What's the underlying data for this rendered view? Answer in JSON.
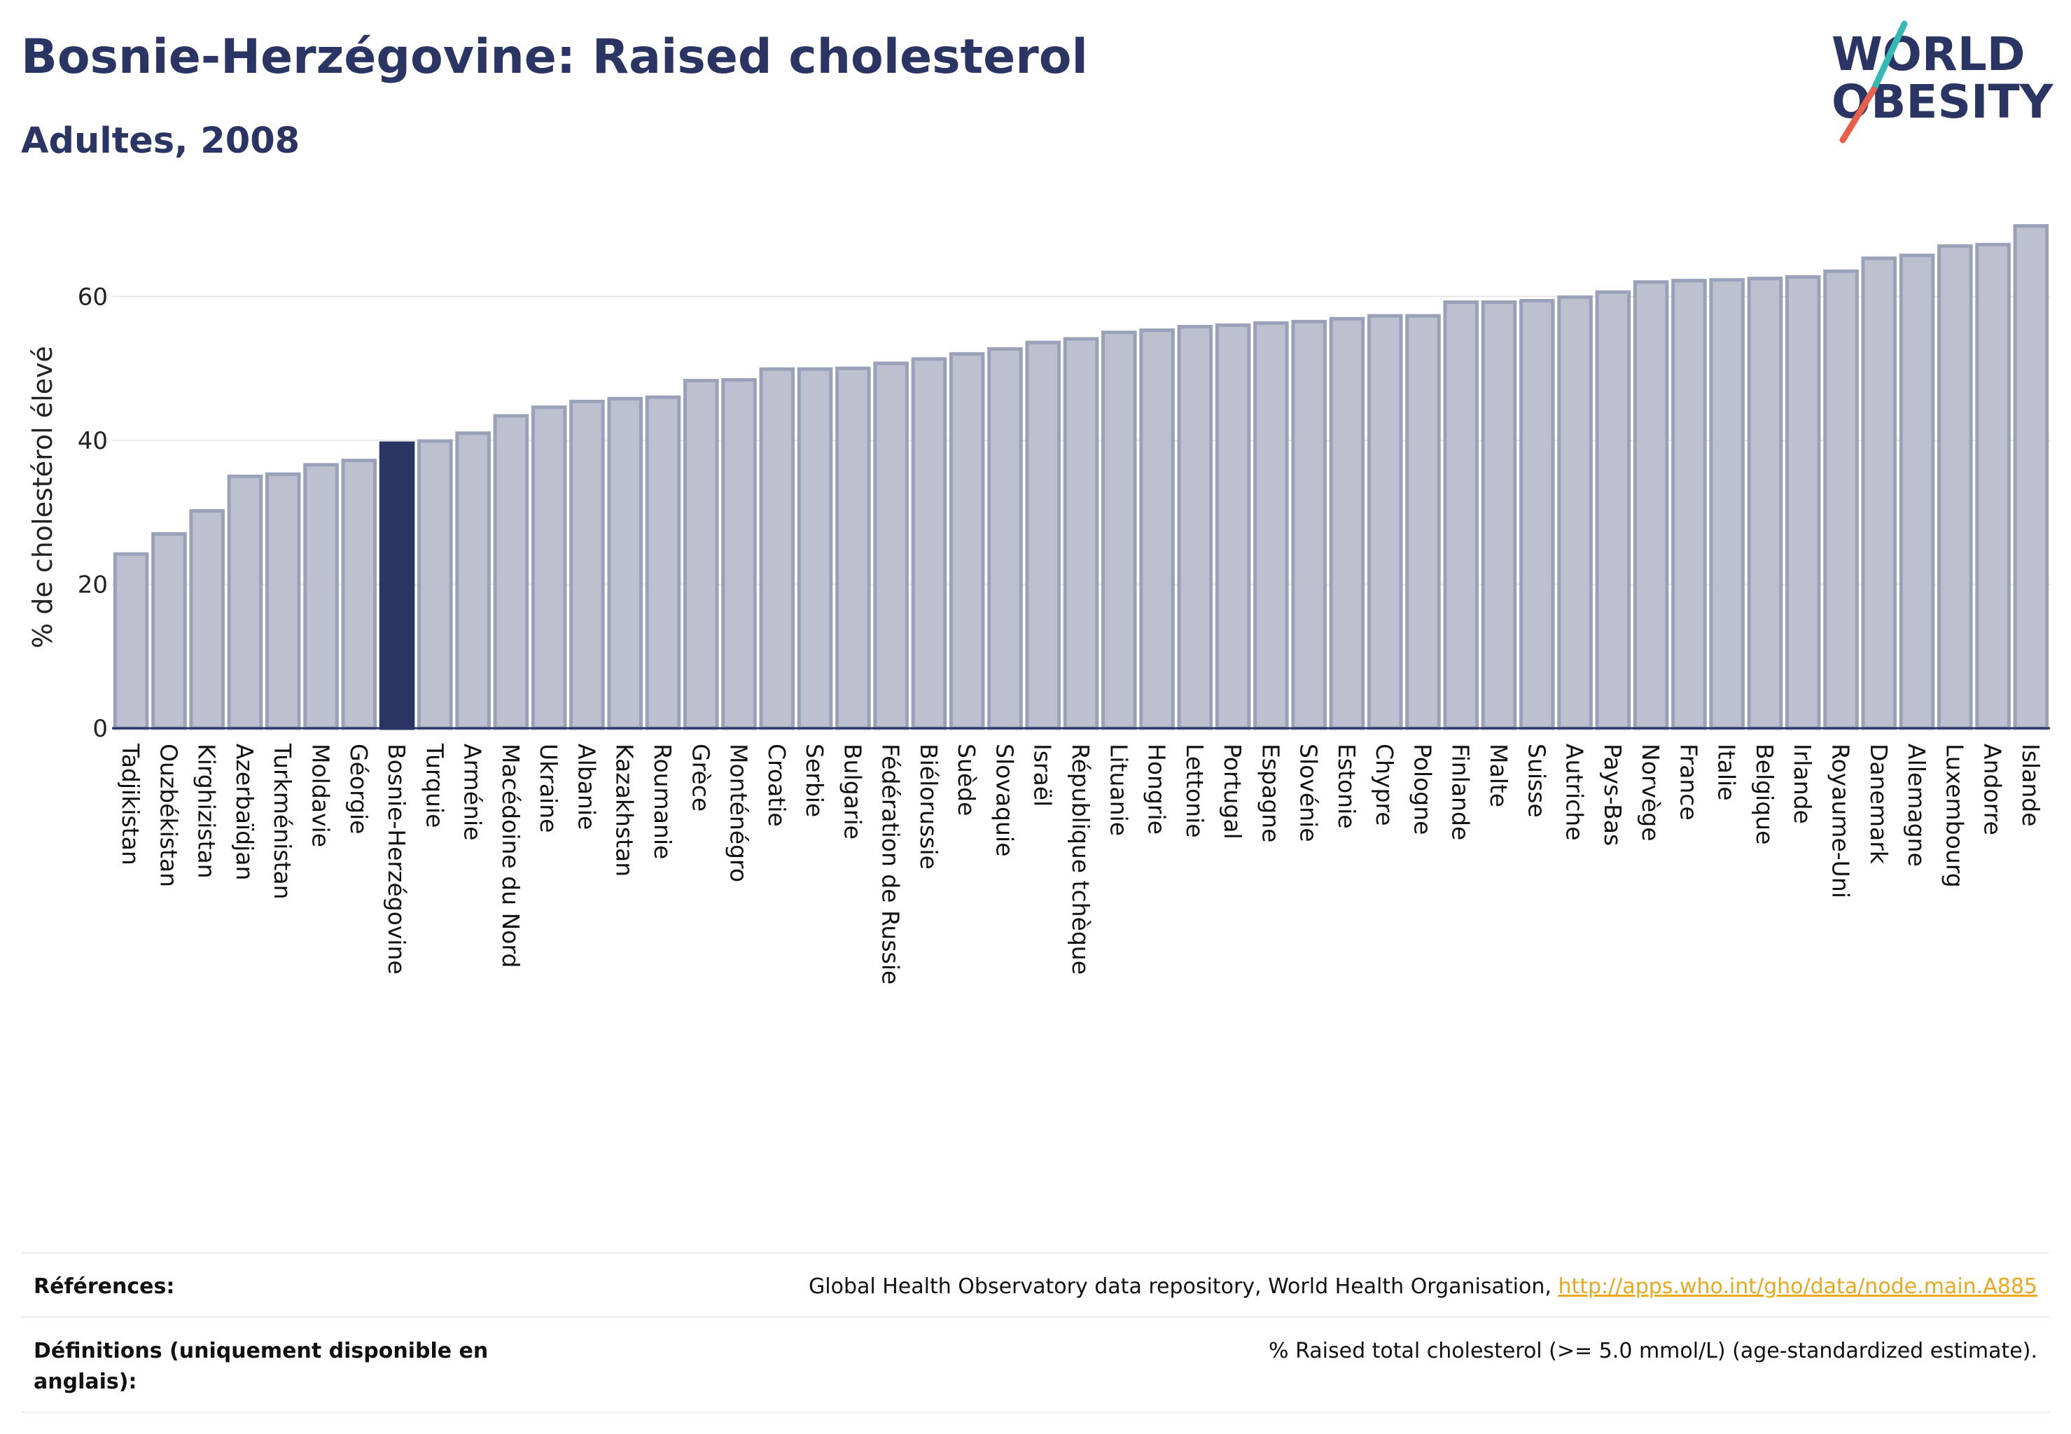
{
  "header": {
    "title": "Bosnie-Herzégovine: Raised cholesterol",
    "subtitle": "Adultes, 2008"
  },
  "logo": {
    "line1": "WORLD",
    "line2": "OBESITY"
  },
  "colors": {
    "highlight": "#2a3563",
    "bar_fill": "#bcc0cf",
    "bar_stroke": "#9ba1b9",
    "link": "#e8a91f"
  },
  "chart_data": {
    "type": "bar",
    "ylabel": "% de cholestérol élevé",
    "xlabel": "",
    "ylim": [
      0,
      72
    ],
    "yticks": [
      0,
      20,
      40,
      60
    ],
    "grid": true,
    "highlight": "Bosnie-Herzégovine",
    "categories": [
      "Tadjikistan",
      "Ouzbékistan",
      "Kirghizistan",
      "Azerbaïdjan",
      "Turkménistan",
      "Moldavie",
      "Géorgie",
      "Bosnie-Herzégovine",
      "Turquie",
      "Arménie",
      "Macédoine du Nord",
      "Ukraine",
      "Albanie",
      "Kazakhstan",
      "Roumanie",
      "Grèce",
      "Monténégro",
      "Croatie",
      "Serbie",
      "Bulgarie",
      "Fédération de Russie",
      "Biélorussie",
      "Suède",
      "Slovaquie",
      "Israël",
      "République tchèque",
      "Lituanie",
      "Hongrie",
      "Lettonie",
      "Portugal",
      "Espagne",
      "Slovénie",
      "Estonie",
      "Chypre",
      "Pologne",
      "Finlande",
      "Malte",
      "Suisse",
      "Autriche",
      "Pays-Bas",
      "Norvège",
      "France",
      "Italie",
      "Belgique",
      "Irlande",
      "Royaume-Uni",
      "Danemark",
      "Allemagne",
      "Luxembourg",
      "Andorre",
      "Islande"
    ],
    "values": [
      24.2,
      27.0,
      30.2,
      35.0,
      35.3,
      36.6,
      37.2,
      39.6,
      39.9,
      41.0,
      43.4,
      44.6,
      45.4,
      45.8,
      46.0,
      48.3,
      48.4,
      49.9,
      49.9,
      50.0,
      50.7,
      51.3,
      52.0,
      52.7,
      53.6,
      54.1,
      55.0,
      55.3,
      55.8,
      56.0,
      56.3,
      56.5,
      56.9,
      57.3,
      57.3,
      59.2,
      59.2,
      59.4,
      59.9,
      60.6,
      62.0,
      62.2,
      62.3,
      62.5,
      62.7,
      63.5,
      65.3,
      65.7,
      67.0,
      67.2,
      69.8
    ]
  },
  "references": {
    "label": "Références:",
    "text": "Global Health Observatory data repository, World Health Organisation, ",
    "link": "http://apps.who.int/gho/data/node.main.A885"
  },
  "definitions": {
    "label": "Définitions (uniquement disponible en anglais):",
    "text": "% Raised total cholesterol (>= 5.0 mmol/L) (age-standardized estimate)."
  }
}
